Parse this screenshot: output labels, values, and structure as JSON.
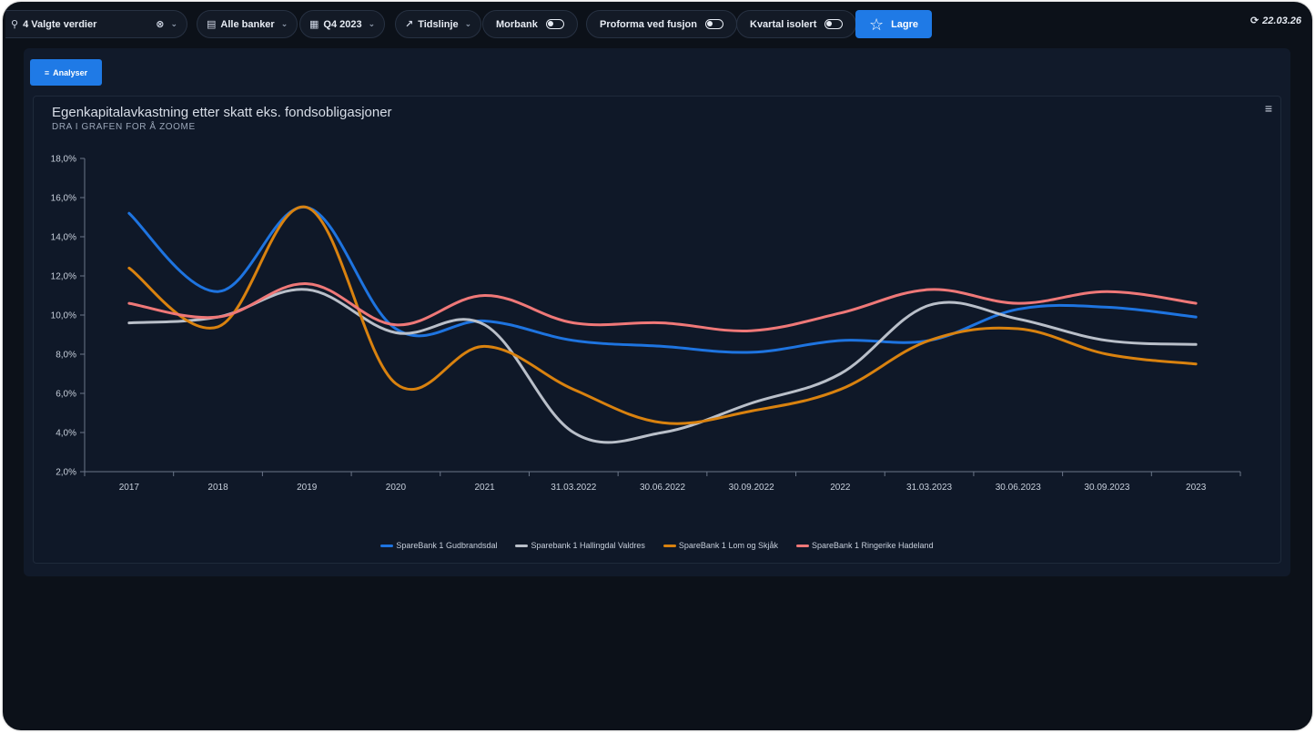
{
  "toolbar": {
    "search_value": "4 Valgte verdier",
    "banks_label": "Alle banker",
    "period_label": "Q4 2023",
    "view_label": "Tidslinje",
    "morbank_label": "Morbank",
    "proforma_label": "Proforma ved fusjon",
    "quarter_label": "Kvartal isolert",
    "save_label": "Lagre",
    "refresh_date": "22.03.26"
  },
  "panel": {
    "analyse_label": "Analyser"
  },
  "colors": {
    "accent": "#1f7ae6",
    "background": "#0c1119"
  },
  "chart_data": {
    "type": "line",
    "title": "Egenkapitalavkastning etter skatt eks. fondsobligasjoner",
    "subtitle": "DRA I GRAFEN FOR Å ZOOME",
    "categories": [
      "2017",
      "2018",
      "2019",
      "2020",
      "2021",
      "31.03.2022",
      "30.06.2022",
      "30.09.2022",
      "2022",
      "31.03.2023",
      "30.06.2023",
      "30.09.2023",
      "2023"
    ],
    "y_ticks": [
      "2,0%",
      "4,0%",
      "6,0%",
      "8,0%",
      "10,0%",
      "12,0%",
      "14,0%",
      "16,0%",
      "18,0%"
    ],
    "ylim": [
      2,
      18
    ],
    "grid": false,
    "legend_position": "bottom",
    "series": [
      {
        "name": "SpareBank 1 Gudbrandsdal",
        "color": "#1e74e0",
        "values": [
          15.2,
          11.2,
          15.5,
          9.3,
          9.7,
          8.7,
          8.4,
          8.1,
          8.7,
          8.7,
          10.3,
          10.4,
          9.9
        ]
      },
      {
        "name": "Sparebank 1 Hallingdal Valdres",
        "color": "#b9bfc9",
        "values": [
          9.6,
          9.9,
          11.3,
          9.1,
          9.5,
          4.0,
          4.0,
          5.5,
          7.0,
          10.5,
          9.8,
          8.7,
          8.5
        ]
      },
      {
        "name": "SpareBank 1 Lom og Skjåk",
        "color": "#d9820f",
        "values": [
          12.4,
          9.4,
          15.5,
          6.5,
          8.4,
          6.2,
          4.5,
          5.1,
          6.2,
          8.7,
          9.3,
          8.0,
          7.5
        ]
      },
      {
        "name": "SpareBank 1 Ringerike Hadeland",
        "color": "#ef7878",
        "values": [
          10.6,
          9.9,
          11.6,
          9.5,
          11.0,
          9.6,
          9.6,
          9.2,
          10.1,
          11.3,
          10.6,
          11.2,
          10.6
        ]
      }
    ]
  }
}
